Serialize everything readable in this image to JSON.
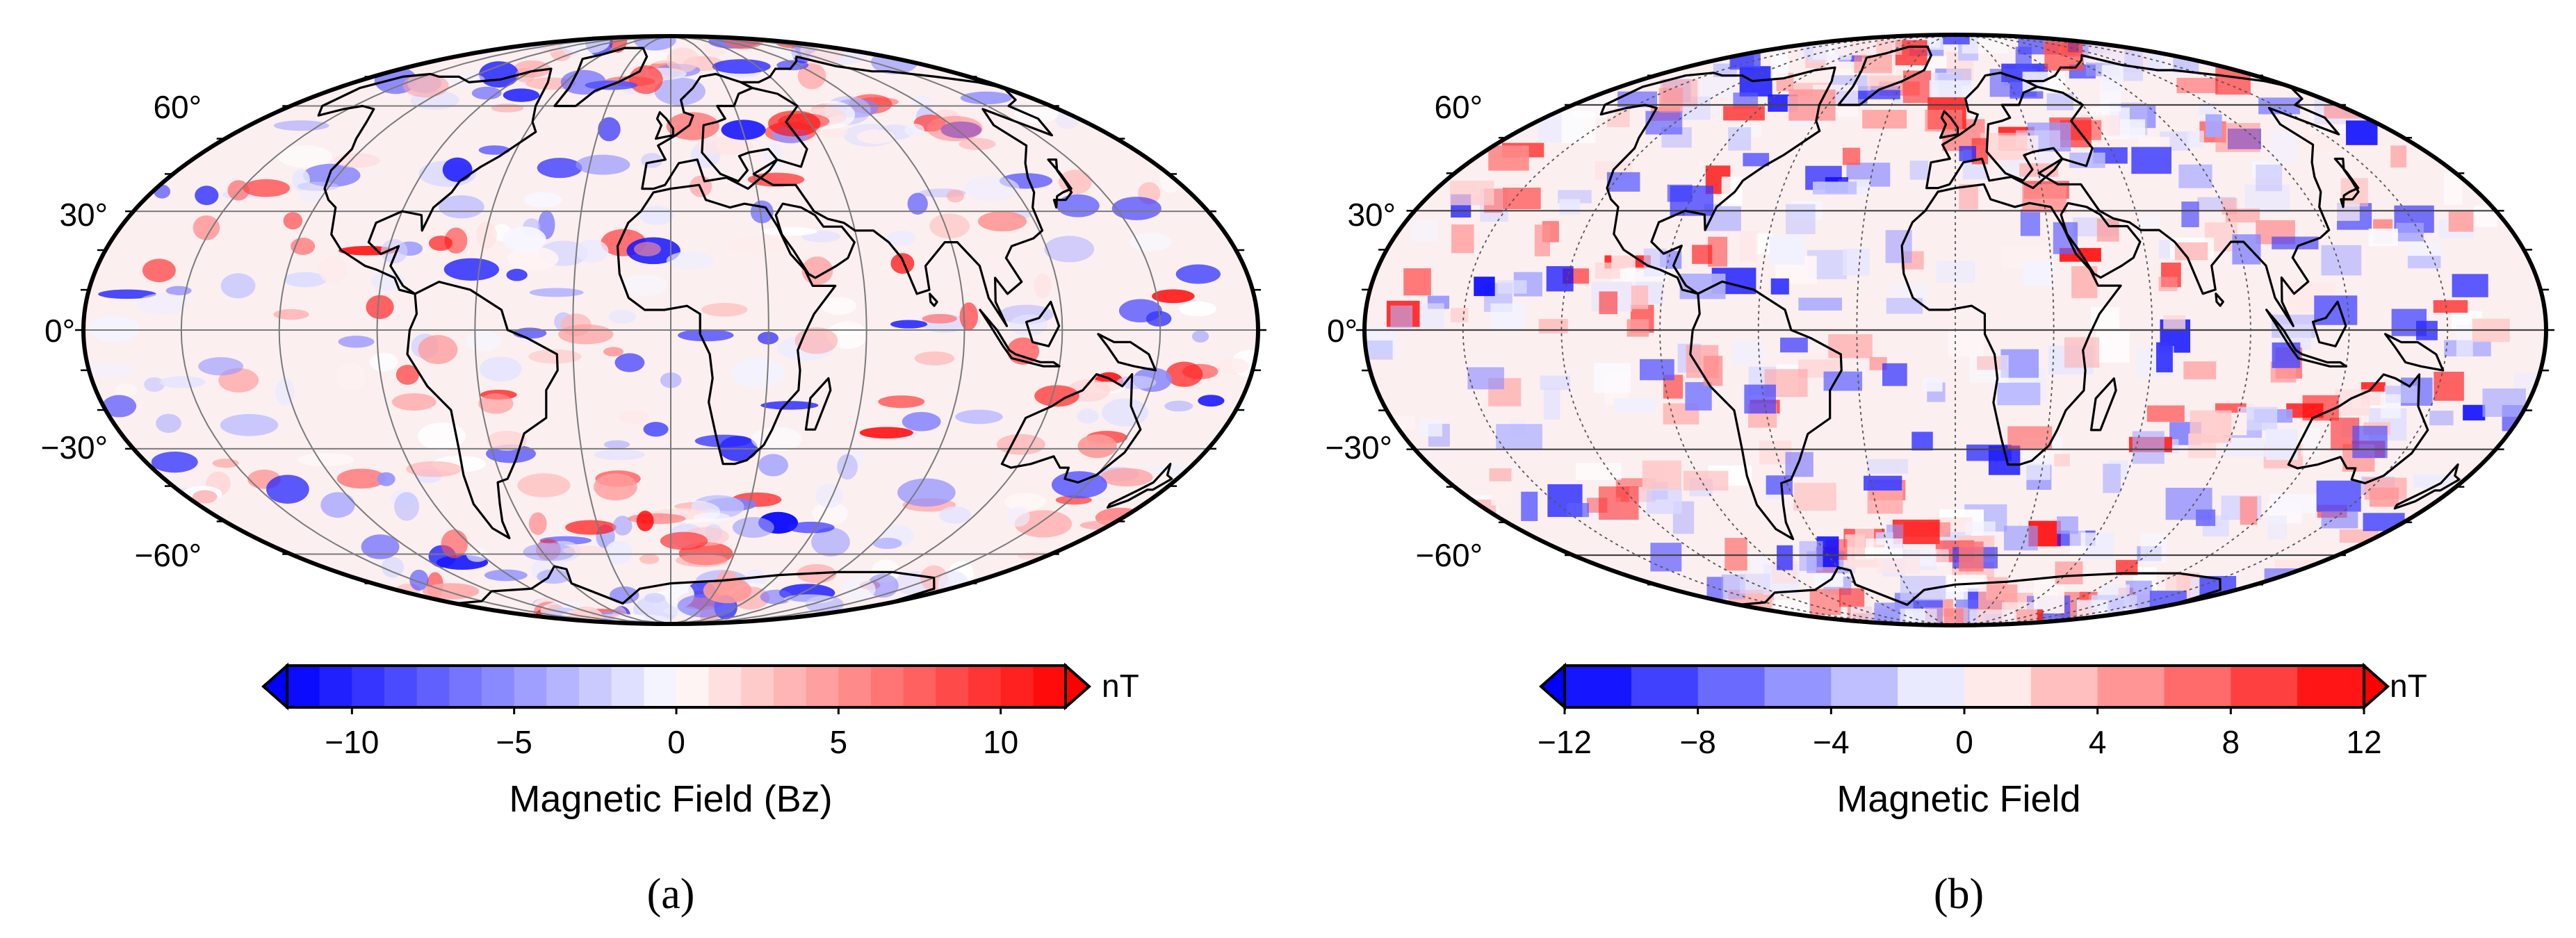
{
  "panels": [
    {
      "id": "a",
      "label": "(a)",
      "lat_labels": [
        "60°",
        "30°",
        "0°",
        "−30°",
        "−60°"
      ],
      "graticule": "solid",
      "anomaly_style": "smooth",
      "colorbar": {
        "title": "Magnetic Field (Bz)",
        "unit": "nT",
        "range": [
          -12,
          12
        ],
        "levels": 24,
        "ticks": [
          "−10",
          "−5",
          "0",
          "5",
          "10"
        ],
        "tick_values": [
          -10,
          -5,
          0,
          5,
          10
        ],
        "extend": "both"
      }
    },
    {
      "id": "b",
      "label": "(b)",
      "lat_labels": [
        "60°",
        "30°",
        "0°",
        "−30°",
        "−60°"
      ],
      "graticule": "dashed",
      "anomaly_style": "blocky",
      "colorbar": {
        "title": "Magnetic Field",
        "unit": "nT",
        "range": [
          -12,
          12
        ],
        "levels": 12,
        "ticks": [
          "−12",
          "−8",
          "−4",
          "0",
          "4",
          "8",
          "12"
        ],
        "tick_values": [
          -12,
          -8,
          -4,
          0,
          4,
          8,
          12
        ],
        "extend": "both"
      }
    }
  ],
  "colors": {
    "negative": "#0000ff",
    "zero": "#ffffff",
    "positive": "#ff0000",
    "coastline": "#000000",
    "graticule": "#7a7a7a"
  }
}
